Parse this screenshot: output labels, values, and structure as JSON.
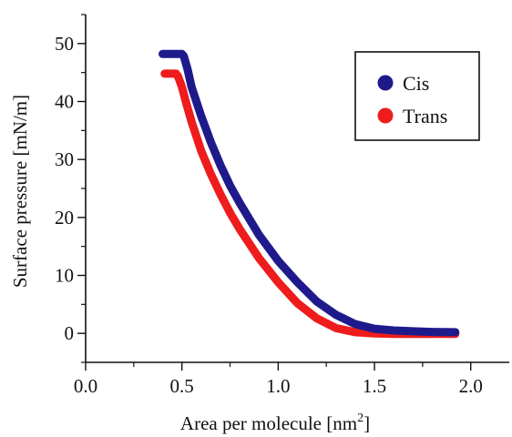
{
  "chart_data": {
    "type": "line",
    "title": "",
    "xlabel": "Area per molecule [nm",
    "xlabel_sup": "2",
    "xlabel_end": "]",
    "ylabel": "Surface pressure [mN/m]",
    "xlim": [
      0.0,
      2.2
    ],
    "ylim": [
      -5,
      55
    ],
    "xticks": [
      {
        "value": 0.0,
        "label": "0.0"
      },
      {
        "value": 0.5,
        "label": "0.5"
      },
      {
        "value": 1.0,
        "label": "1.0"
      },
      {
        "value": 1.5,
        "label": "1.5"
      },
      {
        "value": 2.0,
        "label": "2.0"
      }
    ],
    "yticks": [
      {
        "value": 0,
        "label": "0"
      },
      {
        "value": 10,
        "label": "10"
      },
      {
        "value": 20,
        "label": "20"
      },
      {
        "value": 30,
        "label": "30"
      },
      {
        "value": 40,
        "label": "40"
      },
      {
        "value": 50,
        "label": "50"
      }
    ],
    "grid": false,
    "legend_position": "top-right",
    "series": [
      {
        "name": "Cis",
        "color": "#1f1a8c",
        "x": [
          0.4,
          0.5,
          0.51,
          0.53,
          0.55,
          0.6,
          0.65,
          0.7,
          0.75,
          0.8,
          0.9,
          1.0,
          1.1,
          1.2,
          1.3,
          1.4,
          1.5,
          1.6,
          1.7,
          1.8,
          1.92
        ],
        "y": [
          48.2,
          48.2,
          47.8,
          45.5,
          42.5,
          37.5,
          33.0,
          29.0,
          25.5,
          22.5,
          17.0,
          12.5,
          8.8,
          5.5,
          3.2,
          1.6,
          0.8,
          0.5,
          0.35,
          0.25,
          0.2
        ]
      },
      {
        "name": "Trans",
        "color": "#ee1c1c",
        "x": [
          0.41,
          0.47,
          0.48,
          0.5,
          0.52,
          0.55,
          0.6,
          0.65,
          0.7,
          0.75,
          0.8,
          0.9,
          1.0,
          1.1,
          1.2,
          1.3,
          1.4,
          1.5,
          1.6,
          1.7,
          1.8,
          1.92
        ],
        "y": [
          44.8,
          44.8,
          44.3,
          42.5,
          40.0,
          36.5,
          31.5,
          27.5,
          24.0,
          20.8,
          18.0,
          13.0,
          8.8,
          5.2,
          2.6,
          0.9,
          0.2,
          0.0,
          -0.1,
          -0.1,
          -0.1,
          -0.1
        ]
      }
    ]
  }
}
